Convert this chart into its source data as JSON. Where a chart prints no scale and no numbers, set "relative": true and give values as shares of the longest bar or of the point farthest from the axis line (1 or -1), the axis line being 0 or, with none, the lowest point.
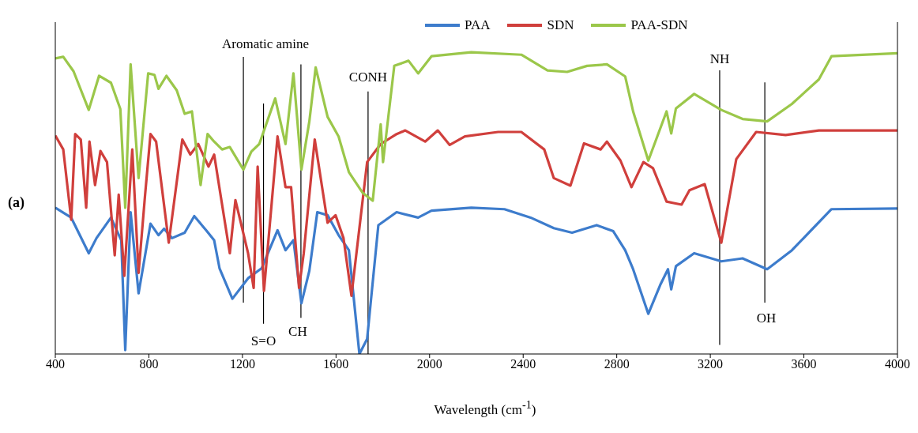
{
  "chart_data": {
    "type": "line",
    "relative": true,
    "xlabel": "Wavelength (cm$^{-1}$)",
    "xlim": [
      400,
      4000
    ],
    "xticks": [
      400,
      800,
      1200,
      1600,
      2000,
      2400,
      2800,
      3200,
      3600,
      4000
    ],
    "legend": "top right",
    "grid": false,
    "series": [
      {
        "name": "PAA",
        "color": "#3d7ccc",
        "x": [
          400,
          468,
          543,
          576,
          638,
          682,
          699,
          722,
          756,
          807,
          841,
          865,
          899,
          953,
          994,
          1045,
          1079,
          1102,
          1157,
          1224,
          1282,
          1350,
          1384,
          1418,
          1452,
          1486,
          1520,
          1564,
          1611,
          1655,
          1700,
          1733,
          1781,
          1859,
          1951,
          2008,
          2178,
          2320,
          2432,
          2531,
          2609,
          2714,
          2785,
          2836,
          2870,
          2935,
          2986,
          3019,
          3033,
          3053,
          3131,
          3247,
          3338,
          3443,
          3549,
          3718,
          4000
        ],
        "values": [
          0.485,
          0.452,
          0.334,
          0.384,
          0.452,
          0.377,
          0.013,
          0.47,
          0.201,
          0.432,
          0.394,
          0.415,
          0.384,
          0.402,
          0.457,
          0.41,
          0.377,
          0.284,
          0.183,
          0.251,
          0.284,
          0.41,
          0.344,
          0.377,
          0.168,
          0.276,
          0.47,
          0.46,
          0.394,
          0.344,
          0.0,
          0.05,
          0.427,
          0.47,
          0.452,
          0.475,
          0.485,
          0.48,
          0.452,
          0.417,
          0.402,
          0.427,
          0.407,
          0.344,
          0.281,
          0.133,
          0.229,
          0.281,
          0.214,
          0.291,
          0.334,
          0.307,
          0.317,
          0.281,
          0.344,
          0.48,
          0.482
        ]
      },
      {
        "name": "SDN",
        "color": "#d03f3c",
        "x": [
          400,
          434,
          468,
          485,
          509,
          532,
          546,
          570,
          593,
          621,
          654,
          671,
          695,
          729,
          756,
          783,
          807,
          831,
          885,
          943,
          977,
          1011,
          1055,
          1079,
          1146,
          1170,
          1224,
          1248,
          1265,
          1292,
          1350,
          1384,
          1408,
          1442,
          1462,
          1509,
          1564,
          1598,
          1632,
          1666,
          1733,
          1791,
          1859,
          1896,
          1981,
          2035,
          2086,
          2151,
          2293,
          2392,
          2490,
          2531,
          2602,
          2660,
          2731,
          2758,
          2816,
          2863,
          2914,
          2955,
          3013,
          3077,
          3111,
          3176,
          3247,
          3311,
          3396,
          3522,
          3664,
          4000
        ],
        "values": [
          0.724,
          0.678,
          0.445,
          0.729,
          0.711,
          0.485,
          0.704,
          0.56,
          0.673,
          0.636,
          0.327,
          0.528,
          0.259,
          0.678,
          0.269,
          0.52,
          0.729,
          0.704,
          0.369,
          0.711,
          0.661,
          0.696,
          0.621,
          0.661,
          0.334,
          0.51,
          0.334,
          0.219,
          0.621,
          0.209,
          0.721,
          0.553,
          0.553,
          0.219,
          0.334,
          0.711,
          0.435,
          0.46,
          0.384,
          0.193,
          0.636,
          0.696,
          0.729,
          0.741,
          0.704,
          0.741,
          0.693,
          0.721,
          0.736,
          0.736,
          0.678,
          0.583,
          0.558,
          0.698,
          0.678,
          0.704,
          0.641,
          0.553,
          0.636,
          0.616,
          0.505,
          0.495,
          0.543,
          0.563,
          0.369,
          0.646,
          0.736,
          0.726,
          0.741,
          0.741
        ]
      },
      {
        "name": "PAA-SDN",
        "color": "#9bc74a",
        "x": [
          400,
          434,
          478,
          543,
          587,
          638,
          678,
          699,
          722,
          756,
          797,
          824,
          841,
          875,
          919,
          953,
          984,
          1021,
          1051,
          1079,
          1113,
          1146,
          1204,
          1238,
          1272,
          1340,
          1384,
          1418,
          1452,
          1486,
          1513,
          1564,
          1611,
          1655,
          1713,
          1757,
          1791,
          1801,
          1849,
          1910,
          1951,
          2008,
          2178,
          2392,
          2504,
          2588,
          2673,
          2758,
          2836,
          2870,
          2935,
          3013,
          3033,
          3053,
          3131,
          3247,
          3338,
          3443,
          3549,
          3664,
          3718,
          4000
        ],
        "values": [
          0.98,
          0.985,
          0.937,
          0.809,
          0.922,
          0.899,
          0.812,
          0.485,
          0.96,
          0.583,
          0.93,
          0.925,
          0.879,
          0.922,
          0.874,
          0.796,
          0.804,
          0.56,
          0.729,
          0.704,
          0.678,
          0.686,
          0.611,
          0.671,
          0.696,
          0.847,
          0.696,
          0.93,
          0.611,
          0.771,
          0.95,
          0.786,
          0.721,
          0.603,
          0.535,
          0.508,
          0.761,
          0.636,
          0.955,
          0.972,
          0.93,
          0.987,
          1.0,
          0.992,
          0.94,
          0.935,
          0.955,
          0.96,
          0.92,
          0.804,
          0.641,
          0.804,
          0.731,
          0.814,
          0.862,
          0.809,
          0.779,
          0.771,
          0.829,
          0.91,
          0.987,
          0.997
        ]
      }
    ],
    "ref_lines": [
      {
        "axis": "x",
        "value": 1204,
        "label": "Aromatic amine"
      },
      {
        "axis": "x",
        "value": 1290,
        "label": "S=O"
      },
      {
        "axis": "x",
        "value": 1450,
        "label": "CH"
      },
      {
        "axis": "x",
        "value": 1737,
        "label": "CONH"
      },
      {
        "axis": "x",
        "value": 3240,
        "label": "NH"
      },
      {
        "axis": "x",
        "value": 3433,
        "label": "OH"
      }
    ],
    "annotations": [
      "(a)"
    ]
  }
}
